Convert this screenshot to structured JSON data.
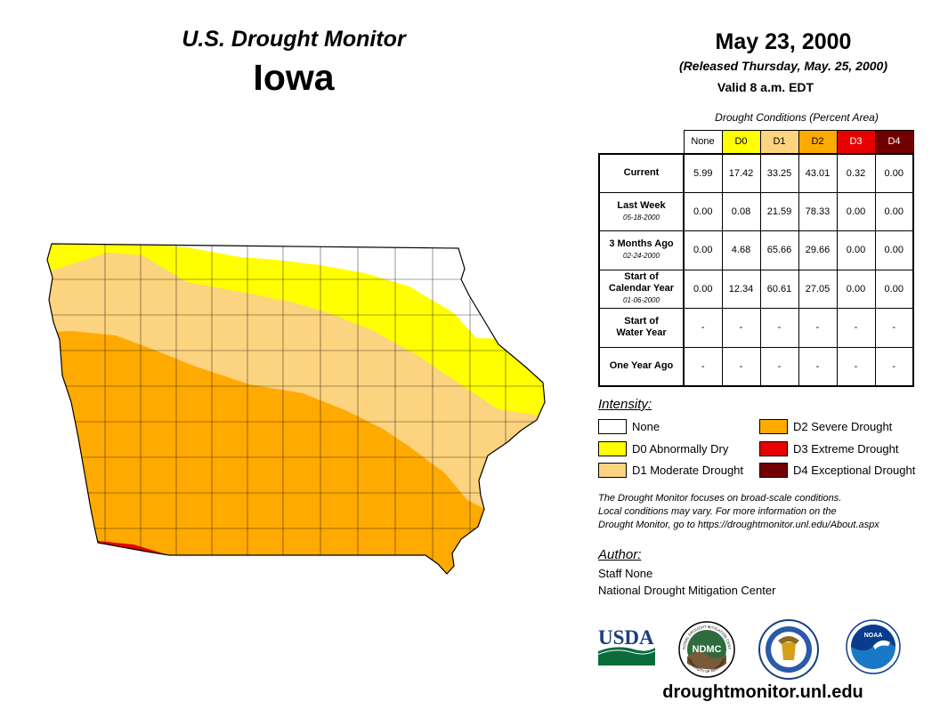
{
  "header": {
    "subtitle": "U.S. Drought Monitor",
    "state": "Iowa",
    "date": "May 23, 2000",
    "released": "(Released Thursday, May. 25, 2000)",
    "valid": "Valid 8 a.m. EDT"
  },
  "colors": {
    "none": "#ffffff",
    "d0": "#ffff00",
    "d1": "#fcd37f",
    "d2": "#ffaa00",
    "d3": "#e60000",
    "d4": "#730000"
  },
  "table": {
    "caption": "Drought Conditions (Percent Area)",
    "columns": [
      "None",
      "D0",
      "D1",
      "D2",
      "D3",
      "D4"
    ],
    "rows": [
      {
        "label": "Current",
        "sub": "",
        "values": [
          "5.99",
          "17.42",
          "33.25",
          "43.01",
          "0.32",
          "0.00"
        ]
      },
      {
        "label": "Last Week",
        "sub": "05-18-2000",
        "values": [
          "0.00",
          "0.08",
          "21.59",
          "78.33",
          "0.00",
          "0.00"
        ]
      },
      {
        "label": "3 Months Ago",
        "sub": "02-24-2000",
        "values": [
          "0.00",
          "4.68",
          "65.66",
          "29.66",
          "0.00",
          "0.00"
        ]
      },
      {
        "label_line1": "Start of",
        "label": "Calendar Year",
        "sub": "01-06-2000",
        "values": [
          "0.00",
          "12.34",
          "60.61",
          "27.05",
          "0.00",
          "0.00"
        ]
      },
      {
        "label_line1": "Start of",
        "label": "Water Year",
        "sub": "",
        "values": [
          "-",
          "-",
          "-",
          "-",
          "-",
          "-"
        ]
      },
      {
        "label": "One Year Ago",
        "sub": "",
        "values": [
          "-",
          "-",
          "-",
          "-",
          "-",
          "-"
        ]
      }
    ]
  },
  "legend": {
    "title": "Intensity:",
    "items": [
      {
        "key": "none",
        "label": "None"
      },
      {
        "key": "d0",
        "label": "D0 Abnormally Dry"
      },
      {
        "key": "d1",
        "label": "D1 Moderate Drought"
      },
      {
        "key": "d2",
        "label": "D2 Severe Drought"
      },
      {
        "key": "d3",
        "label": "D3 Extreme Drought"
      },
      {
        "key": "d4",
        "label": "D4 Exceptional Drought"
      }
    ]
  },
  "note": {
    "line1": "The Drought Monitor focuses on broad-scale conditions.",
    "line2": "Local conditions may vary. For more information on the",
    "line3": "Drought Monitor, go to https://droughtmonitor.unl.edu/About.aspx"
  },
  "author": {
    "title": "Author:",
    "name": "Staff None",
    "org": "National Drought Mitigation Center"
  },
  "logos": {
    "usda": "USDA",
    "ndmc": "NDMC",
    "noaa": "NOAA",
    "ndmc_arc_top": "NATIONAL DROUGHT MITIGATION CENTER",
    "ndmc_arc_bottom": "UNIVERSITY OF NEBRASKA"
  },
  "footer": {
    "url": "droughtmonitor.unl.edu"
  }
}
